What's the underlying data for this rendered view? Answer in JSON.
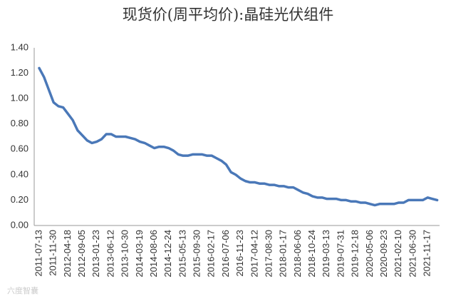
{
  "chart_data": {
    "type": "line",
    "title": "现货价(周平均价):晶硅光伏组件",
    "categories": [
      "2011-07-13",
      null,
      null,
      "2011-11-30",
      null,
      null,
      "2012-04-18",
      null,
      null,
      "2012-09-05",
      null,
      null,
      "2013-01-23",
      null,
      null,
      "2013-06-12",
      null,
      null,
      "2013-10-30",
      null,
      null,
      "2014-03-19",
      null,
      null,
      "2014-08-06",
      null,
      null,
      "2014-12-24",
      null,
      null,
      "2015-05-13",
      null,
      null,
      "2015-09-30",
      null,
      null,
      "2016-02-17",
      null,
      null,
      "2016-07-06",
      null,
      null,
      "2016-11-23",
      null,
      null,
      "2017-04-12",
      null,
      null,
      "2017-08-30",
      null,
      null,
      "2018-01-17",
      null,
      null,
      "2018-06-06",
      null,
      null,
      "2018-10-24",
      null,
      null,
      "2019-03-13",
      null,
      null,
      "2019-07-31",
      null,
      null,
      "2019-12-18",
      null,
      null,
      "2020-05-06",
      null,
      null,
      "2020-09-23",
      null,
      null,
      "2021-02-10",
      null,
      null,
      "2021-06-30",
      null,
      null,
      "2021-11-17",
      null,
      null
    ],
    "series": [
      {
        "name": "晶硅光伏组件",
        "color": "#4a78b8",
        "values": [
          1.24,
          1.17,
          1.07,
          0.97,
          0.94,
          0.93,
          0.88,
          0.83,
          0.75,
          0.71,
          0.67,
          0.65,
          0.66,
          0.68,
          0.72,
          0.72,
          0.7,
          0.7,
          0.7,
          0.69,
          0.68,
          0.66,
          0.65,
          0.63,
          0.61,
          0.62,
          0.62,
          0.61,
          0.59,
          0.56,
          0.55,
          0.55,
          0.56,
          0.56,
          0.56,
          0.55,
          0.55,
          0.53,
          0.51,
          0.48,
          0.42,
          0.4,
          0.37,
          0.35,
          0.34,
          0.34,
          0.33,
          0.33,
          0.32,
          0.32,
          0.31,
          0.31,
          0.3,
          0.3,
          0.28,
          0.26,
          0.25,
          0.23,
          0.22,
          0.22,
          0.21,
          0.21,
          0.21,
          0.2,
          0.2,
          0.19,
          0.19,
          0.18,
          0.18,
          0.17,
          0.16,
          0.17,
          0.17,
          0.17,
          0.17,
          0.18,
          0.18,
          0.2,
          0.2,
          0.2,
          0.2,
          0.22,
          0.21,
          0.2
        ]
      }
    ],
    "ylim": [
      0,
      1.4
    ],
    "yticks": [
      {
        "value": 0,
        "label": "0.00"
      },
      {
        "value": 0.2,
        "label": "0.20"
      },
      {
        "value": 0.4,
        "label": "0.40"
      },
      {
        "value": 0.6,
        "label": "0.60"
      },
      {
        "value": 0.8,
        "label": "0.80"
      },
      {
        "value": 1.0,
        "label": "1.00"
      },
      {
        "value": 1.2,
        "label": "1.20"
      },
      {
        "value": 1.4,
        "label": "1.40"
      }
    ],
    "grid": false,
    "watermark": "六度智囊"
  }
}
